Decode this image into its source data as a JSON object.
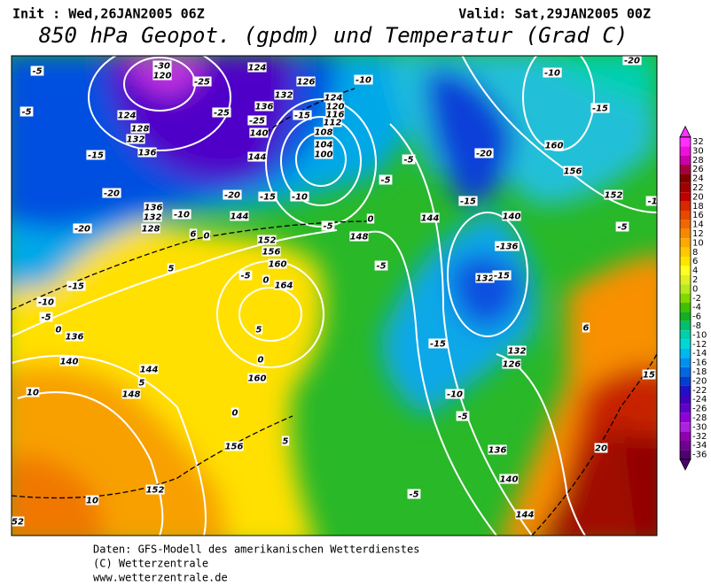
{
  "header": {
    "init": "Init : Wed,26JAN2005 06Z",
    "valid": "Valid: Sat,29JAN2005 00Z",
    "title": "850 hPa Geopot. (gpdm) und Temperatur (Grad C)"
  },
  "colorbar": {
    "labels": [
      32,
      30,
      28,
      26,
      24,
      22,
      20,
      18,
      16,
      14,
      12,
      10,
      8,
      6,
      4,
      2,
      0,
      -2,
      -4,
      -6,
      -8,
      -10,
      -12,
      -14,
      -16,
      -18,
      -20,
      -22,
      -24,
      -26,
      -28,
      -30,
      -32,
      -34,
      -36
    ],
    "colors": [
      "#ff30ff",
      "#ee10dd",
      "#cc00aa",
      "#a80040",
      "#800000",
      "#a00000",
      "#c00000",
      "#d82800",
      "#e84800",
      "#f06800",
      "#f88800",
      "#ffa800",
      "#ffc800",
      "#ffe400",
      "#ffff20",
      "#e0f020",
      "#b8e820",
      "#80d800",
      "#40c000",
      "#10b020",
      "#00c070",
      "#00d0a8",
      "#00d8d8",
      "#00b8f0",
      "#0090f0",
      "#0068e0",
      "#0040d0",
      "#2010c8",
      "#4000c0",
      "#6000c8",
      "#9000d8",
      "#b020e0",
      "#9000b0",
      "#700090",
      "#500070"
    ]
  },
  "map_labels": [
    "-30",
    "120",
    "-25",
    "124",
    "132",
    "126",
    "136",
    "124",
    "120",
    "116",
    "112",
    "108",
    "104",
    "100",
    "-10",
    "-5",
    "-5",
    "124",
    "128",
    "132",
    "136",
    "-15",
    "-25",
    "-25",
    "140",
    "144",
    "-15",
    "-20",
    "-15",
    "-10",
    "-20",
    "-20",
    "136",
    "132",
    "128",
    "-10",
    "144",
    "152",
    "156",
    "160",
    "164",
    "0",
    "-5",
    "5",
    "0",
    "160",
    "148",
    "0",
    "-5",
    "-5",
    "-5",
    "-5",
    "144",
    "-15",
    "140",
    "-136",
    "132",
    "-15",
    "-20",
    "160",
    "156",
    "152",
    "-10",
    "-15",
    "-20",
    "-5",
    "-1",
    "-15",
    "-10",
    "-5",
    "132",
    "126",
    "136",
    "140",
    "144",
    "-5",
    "20",
    "15",
    "6",
    "-10",
    "-5",
    "-15",
    "0",
    "136",
    "140",
    "144",
    "148",
    "5",
    "10",
    "0",
    "5",
    "156",
    "152",
    "10",
    "52",
    "5",
    "0",
    "6"
  ],
  "footer": [
    "Daten: GFS-Modell des amerikanischen Wetterdienstes",
    "(C) Wetterzentrale",
    "www.wetterzentrale.de"
  ]
}
